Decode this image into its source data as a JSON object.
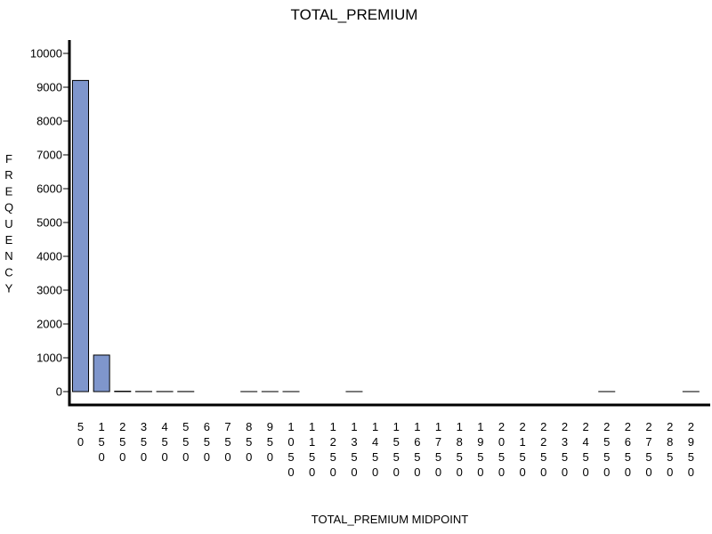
{
  "chart_data": {
    "type": "bar",
    "title": "TOTAL_PREMIUM",
    "xlabel": "TOTAL_PREMIUM MIDPOINT",
    "ylabel": "FREQUENCY",
    "ylim": [
      0,
      10000
    ],
    "yticks": [
      0,
      1000,
      2000,
      3000,
      4000,
      5000,
      6000,
      7000,
      8000,
      9000,
      10000
    ],
    "categories": [
      "50",
      "150",
      "250",
      "350",
      "450",
      "550",
      "650",
      "750",
      "850",
      "950",
      "1050",
      "1150",
      "1250",
      "1350",
      "1450",
      "1550",
      "1650",
      "1750",
      "1850",
      "1950",
      "2050",
      "2150",
      "2250",
      "2350",
      "2450",
      "2550",
      "2650",
      "2750",
      "2850",
      "2950"
    ],
    "values": [
      9200,
      1080,
      12,
      4,
      3,
      3,
      0,
      0,
      1,
      1,
      1,
      0,
      0,
      1,
      0,
      0,
      0,
      0,
      0,
      0,
      0,
      0,
      0,
      0,
      0,
      1,
      0,
      0,
      0,
      1
    ],
    "bar_color": "#7f96cc",
    "grid": false
  }
}
